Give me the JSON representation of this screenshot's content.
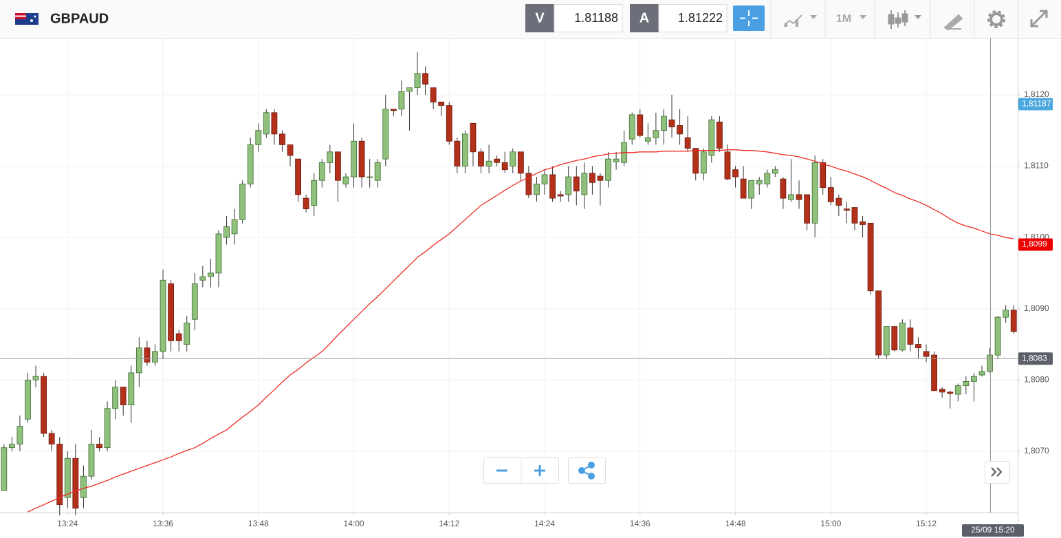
{
  "header": {
    "symbol": "GBPAUD",
    "bid_label": "V",
    "bid": 1.81188,
    "ask_label": "A",
    "ask": 1.81222,
    "timeframe": "1M"
  },
  "chart_data": {
    "type": "candlestick",
    "categories": [
      null,
      null,
      null,
      null,
      null,
      null,
      null,
      null,
      "13:24",
      null,
      null,
      null,
      null,
      null,
      null,
      null,
      null,
      null,
      null,
      null,
      "13:36",
      null,
      null,
      null,
      null,
      null,
      null,
      null,
      null,
      null,
      null,
      null,
      "13:48",
      null,
      null,
      null,
      null,
      null,
      null,
      null,
      null,
      null,
      null,
      null,
      "14:00",
      null,
      null,
      null,
      null,
      null,
      null,
      null,
      null,
      null,
      null,
      null,
      "14:12",
      null,
      null,
      null,
      null,
      null,
      null,
      null,
      null,
      null,
      null,
      null,
      "14:24",
      null,
      null,
      null,
      null,
      null,
      null,
      null,
      null,
      null,
      null,
      null,
      "14:36",
      null,
      null,
      null,
      null,
      null,
      null,
      null,
      null,
      null,
      null,
      null,
      "14:48",
      null,
      null,
      null,
      null,
      null,
      null,
      null,
      null,
      null,
      null,
      null,
      "15:00",
      null,
      null,
      null,
      null,
      null,
      null,
      null,
      null,
      null,
      null,
      null,
      "15:12",
      null,
      null,
      null,
      null,
      null,
      null,
      null,
      null,
      null,
      null,
      null
    ],
    "open": [
      1.80645,
      1.80705,
      1.8071,
      1.80745,
      1.808,
      1.80805,
      1.80725,
      1.8071,
      1.80635,
      1.8069,
      1.80635,
      1.80665,
      1.8071,
      1.80705,
      1.8076,
      1.8079,
      1.80765,
      1.8081,
      1.80845,
      1.80825,
      1.8084,
      1.80935,
      1.80865,
      1.8085,
      1.80885,
      1.8094,
      1.80945,
      1.8095,
      1.81,
      1.81005,
      1.81025,
      1.81075,
      1.8113,
      1.81145,
      1.81175,
      1.81145,
      1.8113,
      1.8111,
      1.81055,
      1.81045,
      1.8108,
      1.81105,
      1.8112,
      1.81075,
      1.81085,
      1.81135,
      1.81085,
      1.8108,
      1.8111,
      1.8118,
      1.8118,
      1.81205,
      1.8121,
      1.8123,
      1.8121,
      1.8119,
      1.81185,
      1.81135,
      1.811,
      1.8116,
      1.8112,
      1.811,
      1.8111,
      1.81105,
      1.811,
      1.8112,
      1.8109,
      1.8106,
      1.81075,
      1.81088,
      1.8106,
      1.8106,
      1.81085,
      1.8106,
      1.8109,
      1.81086,
      1.8108,
      1.81106,
      1.81105,
      1.81138,
      1.81172,
      1.81135,
      1.8114,
      1.8115,
      1.81165,
      1.81157,
      1.8114,
      1.81125,
      1.8109,
      1.81115,
      1.81162,
      1.8112,
      1.81095,
      1.81082,
      1.81055,
      1.81075,
      1.81075,
      1.8109,
      1.81082,
      1.81053,
      1.8106,
      1.8106,
      1.8102,
      1.81105,
      1.8107,
      1.81055,
      1.8104,
      1.81042,
      1.81022,
      1.8102,
      1.80925,
      1.80835,
      1.80875,
      1.80842,
      1.80873,
      1.8085,
      1.8084,
      1.80835,
      1.80787,
      1.80783,
      1.8078,
      1.80792,
      1.80798,
      1.80807,
      1.80812,
      1.80835,
      1.80888,
      1.80898
    ],
    "high": [
      1.8071,
      1.8072,
      1.8075,
      1.8081,
      1.8082,
      1.8081,
      1.8073,
      1.8072,
      1.807,
      1.8071,
      1.8068,
      1.8073,
      1.8072,
      1.8077,
      1.808,
      1.8079,
      1.8082,
      1.8086,
      1.80855,
      1.8085,
      1.80955,
      1.8094,
      1.8087,
      1.8089,
      1.8095,
      1.8096,
      1.8097,
      1.8101,
      1.8103,
      1.8104,
      1.8108,
      1.8114,
      1.8116,
      1.8118,
      1.8118,
      1.8115,
      1.8113,
      1.8111,
      1.8106,
      1.8109,
      1.8111,
      1.8113,
      1.8112,
      1.8109,
      1.8116,
      1.8114,
      1.8111,
      1.8111,
      1.812,
      1.8118,
      1.8122,
      1.8121,
      1.8126,
      1.8124,
      1.8121,
      1.8119,
      1.8119,
      1.8114,
      1.8115,
      1.8116,
      1.81125,
      1.8113,
      1.81115,
      1.8112,
      1.81125,
      1.8112,
      1.811,
      1.81085,
      1.81095,
      1.811,
      1.81065,
      1.811,
      1.811,
      1.81105,
      1.811,
      1.8109,
      1.8112,
      1.8112,
      1.8115,
      1.81175,
      1.8118,
      1.8116,
      1.81175,
      1.8118,
      1.812,
      1.8118,
      1.8117,
      1.81125,
      1.81125,
      1.8117,
      1.8117,
      1.8113,
      1.811,
      1.811,
      1.8108,
      1.81085,
      1.81095,
      1.811,
      1.81085,
      1.8111,
      1.8108,
      1.8106,
      1.81115,
      1.8111,
      1.81085,
      1.8106,
      1.8105,
      1.8104,
      1.8103,
      1.8102,
      1.80925,
      1.80875,
      1.80875,
      1.80885,
      1.80885,
      1.8086,
      1.8085,
      1.8084,
      1.8079,
      1.80785,
      1.80795,
      1.80805,
      1.8081,
      1.8082,
      1.80845,
      1.8089,
      1.80905,
      1.80905
    ],
    "low": [
      1.80645,
      1.807,
      1.807,
      1.8074,
      1.8079,
      1.8072,
      1.807,
      1.8061,
      1.8062,
      1.8061,
      1.8062,
      1.8066,
      1.807,
      1.807,
      1.80745,
      1.8075,
      1.8074,
      1.8079,
      1.8082,
      1.8082,
      1.8083,
      1.8084,
      1.8084,
      1.8084,
      1.8087,
      1.8093,
      1.8093,
      1.8093,
      1.8099,
      1.8099,
      1.8102,
      1.8107,
      1.8112,
      1.8114,
      1.8113,
      1.8112,
      1.811,
      1.8105,
      1.81035,
      1.8103,
      1.8107,
      1.8109,
      1.8105,
      1.8107,
      1.8107,
      1.8107,
      1.8107,
      1.8107,
      1.811,
      1.8117,
      1.8117,
      1.8115,
      1.812,
      1.812,
      1.8118,
      1.8117,
      1.8113,
      1.8109,
      1.8109,
      1.811,
      1.8109,
      1.8109,
      1.811,
      1.8109,
      1.8109,
      1.8108,
      1.81055,
      1.8105,
      1.8106,
      1.8105,
      1.8105,
      1.8105,
      1.81045,
      1.8104,
      1.8106,
      1.81045,
      1.8107,
      1.81095,
      1.811,
      1.8113,
      1.8114,
      1.8113,
      1.8113,
      1.8113,
      1.8114,
      1.8113,
      1.8112,
      1.8108,
      1.8108,
      1.81105,
      1.8112,
      1.8108,
      1.8107,
      1.81055,
      1.8104,
      1.8106,
      1.8107,
      1.81085,
      1.8104,
      1.8105,
      1.8104,
      1.8101,
      1.81,
      1.8106,
      1.81045,
      1.8103,
      1.8102,
      1.8101,
      1.81,
      1.8092,
      1.8083,
      1.8083,
      1.8084,
      1.8084,
      1.8084,
      1.8083,
      1.80825,
      1.80785,
      1.80775,
      1.8076,
      1.8077,
      1.8078,
      1.8077,
      1.80805,
      1.8081,
      1.8083,
      1.8088,
      1.80865
    ],
    "close": [
      1.80705,
      1.8071,
      1.80735,
      1.808,
      1.80805,
      1.80725,
      1.8071,
      1.80625,
      1.8069,
      1.8062,
      1.80665,
      1.8071,
      1.80705,
      1.8076,
      1.8079,
      1.80765,
      1.8081,
      1.80845,
      1.80825,
      1.8084,
      1.8094,
      1.80855,
      1.80855,
      1.8088,
      1.80935,
      1.80945,
      1.8095,
      1.81005,
      1.81015,
      1.81025,
      1.81075,
      1.8113,
      1.8115,
      1.81175,
      1.81145,
      1.8113,
      1.81115,
      1.8106,
      1.8104,
      1.8108,
      1.81105,
      1.8112,
      1.8108,
      1.81085,
      1.81135,
      1.81085,
      1.81085,
      1.81105,
      1.8118,
      1.81178,
      1.81205,
      1.8121,
      1.8123,
      1.81215,
      1.8119,
      1.81185,
      1.81135,
      1.811,
      1.81145,
      1.8112,
      1.811,
      1.81107,
      1.81105,
      1.81095,
      1.8112,
      1.8109,
      1.8106,
      1.81075,
      1.81088,
      1.81055,
      1.81058,
      1.81085,
      1.81065,
      1.8109,
      1.81077,
      1.8108,
      1.8111,
      1.8111,
      1.81133,
      1.81172,
      1.81143,
      1.8114,
      1.8115,
      1.8117,
      1.81155,
      1.81145,
      1.81125,
      1.8109,
      1.8112,
      1.81165,
      1.81125,
      1.81082,
      1.81085,
      1.81055,
      1.8108,
      1.8108,
      1.8109,
      1.81095,
      1.81055,
      1.8106,
      1.81053,
      1.8102,
      1.81105,
      1.8107,
      1.8105,
      1.81045,
      1.81038,
      1.8102,
      1.81018,
      1.80925,
      1.80835,
      1.80875,
      1.80842,
      1.8088,
      1.8085,
      1.80845,
      1.80833,
      1.80785,
      1.80783,
      1.80781,
      1.80792,
      1.80798,
      1.80805,
      1.80812,
      1.80835,
      1.80888,
      1.80898,
      1.80868
    ],
    "up_color": "#8fc07c",
    "down_color": "#b3301a",
    "ma": {
      "color": "#ee2a24",
      "values": [
        null,
        null,
        null,
        1.80615,
        1.8062,
        1.80625,
        1.8063,
        1.80635,
        1.8064,
        1.80644,
        1.80648,
        1.80651,
        1.80655,
        1.80659,
        1.80664,
        1.80668,
        1.80672,
        1.80676,
        1.8068,
        1.80684,
        1.80688,
        1.80692,
        1.80697,
        1.80701,
        1.80705,
        1.80711,
        1.80718,
        1.80724,
        1.8073,
        1.80739,
        1.80748,
        1.80756,
        1.80765,
        1.80776,
        1.80786,
        1.80797,
        1.80807,
        1.80815,
        1.80824,
        1.80832,
        1.8084,
        1.80851,
        1.80863,
        1.80874,
        1.80885,
        1.80896,
        1.80907,
        1.80917,
        1.80928,
        1.80939,
        1.8095,
        1.80961,
        1.80972,
        1.8098,
        1.80989,
        1.80997,
        1.81005,
        1.81015,
        1.81025,
        1.81035,
        1.81045,
        1.81052,
        1.81059,
        1.81066,
        1.81073,
        1.81079,
        1.81084,
        1.8109,
        1.81095,
        1.81098,
        1.81102,
        1.81105,
        1.81108,
        1.8111,
        1.81113,
        1.81115,
        1.81117,
        1.81118,
        1.81119,
        1.81119,
        1.8112,
        1.8112,
        1.8112,
        1.81121,
        1.81121,
        1.81121,
        1.81121,
        1.81122,
        1.81122,
        1.81122,
        1.81122,
        1.81123,
        1.81123,
        1.81122,
        1.81122,
        1.81121,
        1.8112,
        1.81118,
        1.81116,
        1.81115,
        1.81113,
        1.8111,
        1.81107,
        1.81103,
        1.811,
        1.81096,
        1.81093,
        1.81089,
        1.81085,
        1.8108,
        1.81074,
        1.81069,
        1.81063,
        1.81059,
        1.81054,
        1.8105,
        1.81045,
        1.81039,
        1.81033,
        1.81026,
        1.8102,
        1.81016,
        1.81013,
        1.81009,
        1.81005,
        1.81003,
        1.81,
        1.80998
      ]
    },
    "ylim": [
      1.80614,
      1.8128
    ],
    "yticks": [
      {
        "value": 1.807,
        "label": "1,8070"
      },
      {
        "value": 1.808,
        "label": "1,8080"
      },
      {
        "value": 1.809,
        "label": "1,8090"
      },
      {
        "value": 1.81,
        "label": "1,8100"
      },
      {
        "value": 1.811,
        "label": "1,8110"
      },
      {
        "value": 1.812,
        "label": "1,8120"
      }
    ],
    "grid": true,
    "price_tags": [
      {
        "value": 1.81187,
        "label": "1,81187",
        "color": "#4aa6de"
      },
      {
        "value": 1.8099,
        "label": "1,8099",
        "color": "#ee0000"
      }
    ],
    "crosshair": {
      "value": 1.8083,
      "label": "1,8083",
      "time_label": "25/09 15:20",
      "color": "#5b5f68"
    }
  }
}
